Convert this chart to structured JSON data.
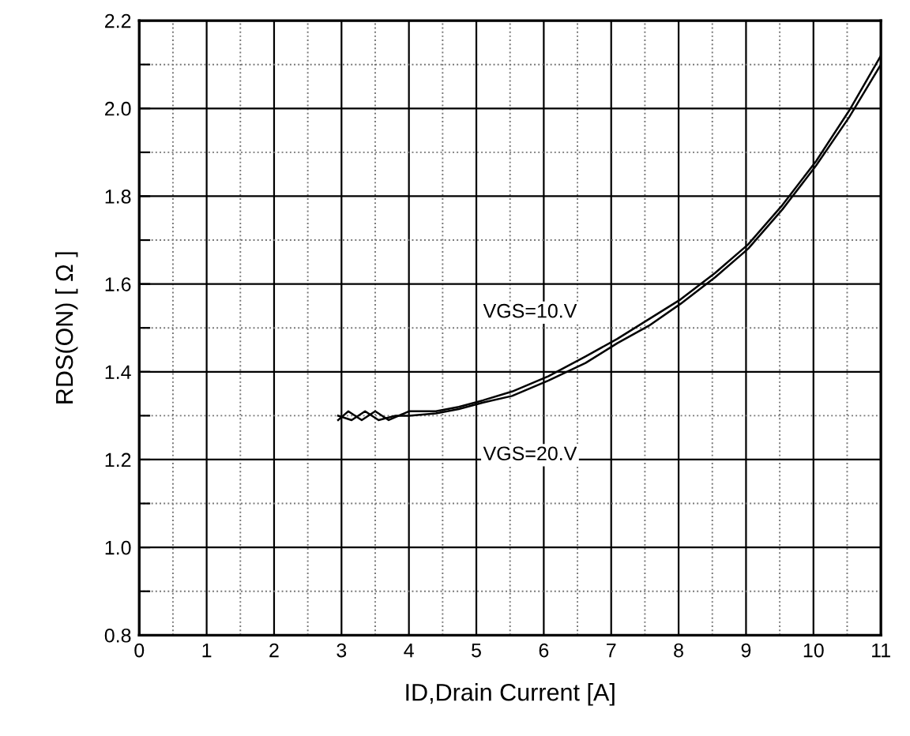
{
  "chart_data": {
    "type": "line",
    "xlabel": "ID,Drain Current [A]",
    "ylabel": "RDS(ON) [ Ω ]",
    "xlim": [
      0,
      11
    ],
    "ylim": [
      0.8,
      2.2
    ],
    "xticks": [
      0,
      {
        "value": 0.5,
        "label": null
      },
      1,
      {
        "value": 1.5,
        "label": null
      },
      2,
      {
        "value": 2.5,
        "label": null
      },
      3,
      {
        "value": 3.5,
        "label": null
      },
      4,
      {
        "value": 4.5,
        "label": null
      },
      5,
      {
        "value": 5.5,
        "label": null
      },
      6,
      {
        "value": 6.5,
        "label": null
      },
      7,
      {
        "value": 7.5,
        "label": null
      },
      8,
      {
        "value": 8.5,
        "label": null
      },
      9,
      {
        "value": 9.5,
        "label": null
      },
      10,
      {
        "value": 10.5,
        "label": null
      },
      11
    ],
    "yticks": [
      {
        "value": 0.8,
        "label": "0.8"
      },
      {
        "value": 0.9,
        "label": null
      },
      {
        "value": 1.0,
        "label": "1.0"
      },
      {
        "value": 1.1,
        "label": null
      },
      {
        "value": 1.2,
        "label": "1.2"
      },
      {
        "value": 1.3,
        "label": null
      },
      {
        "value": 1.4,
        "label": "1.4"
      },
      {
        "value": 1.5,
        "label": null
      },
      {
        "value": 1.6,
        "label": "1.6"
      },
      {
        "value": 1.7,
        "label": null
      },
      {
        "value": 1.8,
        "label": "1.8"
      },
      {
        "value": 1.9,
        "label": null
      },
      {
        "value": 2.0,
        "label": "2.0"
      },
      {
        "value": 2.1,
        "label": null
      },
      {
        "value": 2.2,
        "label": "2.2"
      }
    ],
    "grid": true,
    "marker": "none",
    "line_style": "solid",
    "series": [
      {
        "name": "VGS=10.V",
        "color": "#000000",
        "x": [
          2.95,
          3.1,
          3.3,
          3.5,
          3.7,
          4.0,
          4.4,
          4.74,
          5.1,
          5.53,
          6.07,
          6.62,
          7.09,
          7.56,
          8.03,
          8.54,
          9.03,
          9.54,
          10.04,
          10.53,
          11.0
        ],
        "values": [
          1.29,
          1.31,
          1.29,
          1.31,
          1.29,
          1.31,
          1.31,
          1.32,
          1.335,
          1.355,
          1.39,
          1.435,
          1.475,
          1.52,
          1.565,
          1.625,
          1.69,
          1.78,
          1.88,
          1.995,
          2.12
        ]
      },
      {
        "name": "VGS=20.V",
        "color": "#000000",
        "x": [
          2.95,
          3.15,
          3.35,
          3.55,
          3.8,
          4.0,
          4.4,
          4.74,
          5.1,
          5.53,
          6.07,
          6.62,
          7.09,
          7.56,
          8.03,
          8.54,
          9.03,
          9.54,
          10.04,
          10.53,
          11.0
        ],
        "values": [
          1.3,
          1.29,
          1.31,
          1.29,
          1.3,
          1.3,
          1.305,
          1.315,
          1.33,
          1.345,
          1.38,
          1.42,
          1.465,
          1.505,
          1.555,
          1.615,
          1.68,
          1.77,
          1.87,
          1.98,
          2.1
        ]
      }
    ]
  }
}
